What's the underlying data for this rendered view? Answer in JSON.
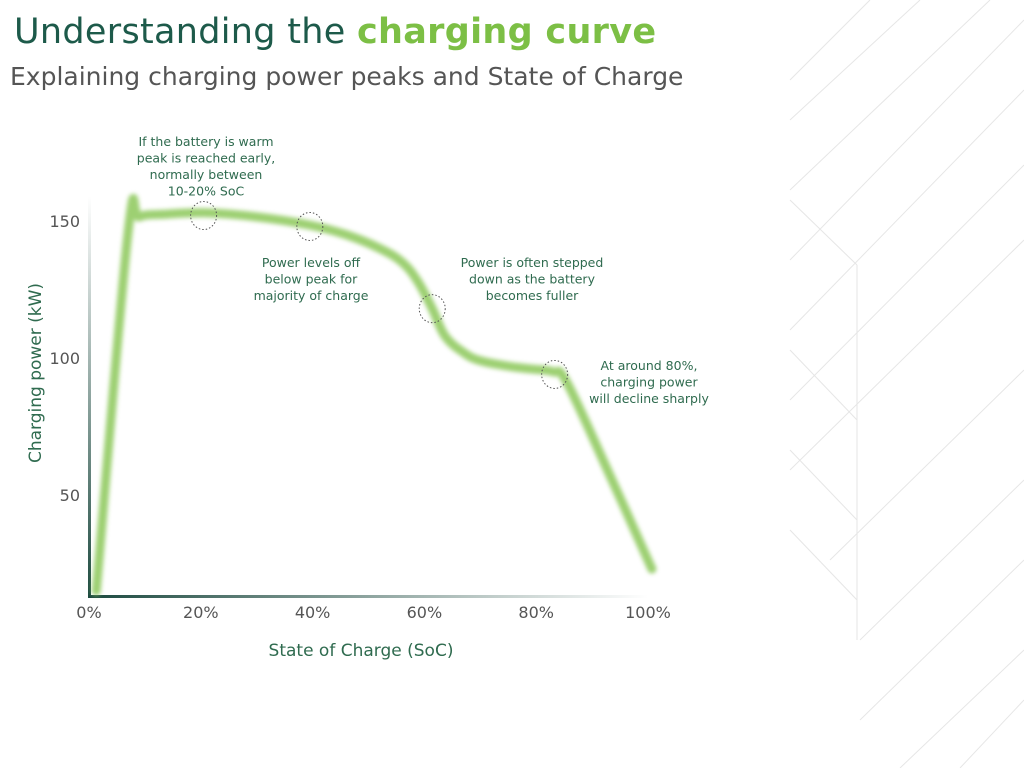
{
  "header": {
    "title_prefix": "Understanding the ",
    "title_highlight": "charging curve",
    "subtitle": "Explaining charging power peaks and State of Charge"
  },
  "colors": {
    "title": "#1d5a4a",
    "highlight": "#7cbf45",
    "curve": "#8cc85a",
    "axis": "#1d4a40",
    "annotation_text": "#2f6b4f"
  },
  "chart_data": {
    "type": "line",
    "title": "",
    "xlabel": "State of Charge (SoC)",
    "ylabel": "Charging power (kW)",
    "xlim": [
      0,
      100
    ],
    "ylim": [
      13,
      159
    ],
    "grid": false,
    "x_ticks": [
      "0%",
      "20%",
      "40%",
      "60%",
      "80%",
      "100%"
    ],
    "x_tick_values": [
      0,
      20,
      40,
      60,
      80,
      100
    ],
    "y_ticks": [
      "50",
      "100",
      "150"
    ],
    "y_tick_values": [
      50,
      100,
      150
    ],
    "series": [
      {
        "x": [
          1.3,
          7,
          9,
          14,
          20.7,
          30,
          39.5,
          46,
          52,
          56,
          58.8,
          61.4,
          63.7,
          67,
          70,
          75,
          79,
          83,
          85.5,
          93,
          100.7
        ],
        "y": [
          15,
          146,
          151.5,
          152.5,
          153,
          151.5,
          148.5,
          145,
          140,
          135,
          128,
          118,
          108,
          102,
          99,
          97,
          96,
          95,
          91,
          58,
          23
        ]
      }
    ],
    "annotations": [
      {
        "x": 20.5,
        "y": 152,
        "lines": [
          "If the battery is warm",
          "peak is reached early,",
          "normally between",
          "10-20% SoC"
        ]
      },
      {
        "x": 39.5,
        "y": 148,
        "lines": [
          "Power levels off",
          "below peak for",
          "majority of charge"
        ]
      },
      {
        "x": 61.4,
        "y": 118,
        "lines": [
          "Power is often stepped",
          "down as the battery",
          "becomes fuller"
        ]
      },
      {
        "x": 83.3,
        "y": 94,
        "lines": [
          "At around 80%,",
          "charging power",
          "will decline sharply"
        ]
      }
    ]
  }
}
